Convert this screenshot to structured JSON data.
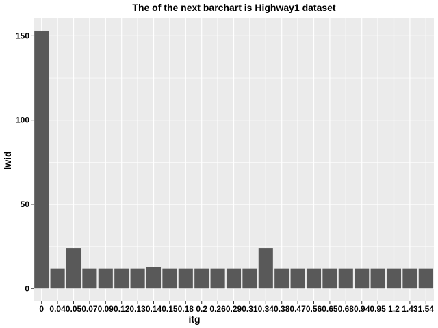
{
  "chart_data": {
    "type": "bar",
    "title": "The of the next barchart is Highway1 dataset",
    "xlabel": "itg",
    "ylabel": "lwid",
    "categories": [
      "0",
      "0.04",
      "0.05",
      "0.07",
      "0.09",
      "0.12",
      "0.13",
      "0.14",
      "0.15",
      "0.18",
      "0.2",
      "0.26",
      "0.29",
      "0.31",
      "0.34",
      "0.38",
      "0.47",
      "0.56",
      "0.65",
      "0.68",
      "0.94",
      "0.95",
      "1.2",
      "1.43",
      "1.54"
    ],
    "values": [
      153,
      12,
      24,
      12,
      12,
      12,
      12,
      13,
      12,
      12,
      12,
      12,
      12,
      12,
      24,
      12,
      12,
      12,
      12,
      12,
      12,
      12,
      12,
      12,
      12
    ],
    "ylim": [
      -7.6,
      160.7
    ],
    "yticks": [
      0,
      50,
      100,
      150
    ],
    "grid": true,
    "legend": "none",
    "colors": {
      "bar": "#595959",
      "panel": "#ebebeb",
      "grid": "#ffffff"
    }
  }
}
